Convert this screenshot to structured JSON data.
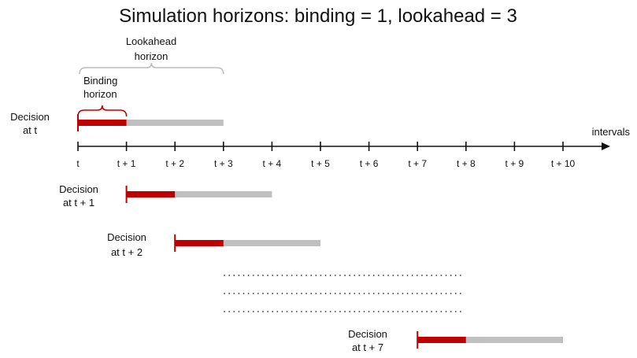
{
  "title": "Simulation horizons: binding = 1, lookahead = 3",
  "axis_label": "intervals",
  "ticks": [
    "t",
    "t + 1",
    "t + 2",
    "t + 3",
    "t + 4",
    "t + 5",
    "t + 6",
    "t + 7",
    "t + 8",
    "t + 9",
    "t + 10"
  ],
  "lookahead_label": [
    "Lookahead",
    "horizon"
  ],
  "binding_label": [
    "Binding",
    "horizon"
  ],
  "binding_intervals": 1,
  "lookahead_intervals": 3,
  "decisions": [
    {
      "label": [
        "Decision",
        "at t"
      ],
      "start": 0
    },
    {
      "label": [
        "Decision",
        "at t + 1"
      ],
      "start": 1
    },
    {
      "label": [
        "Decision",
        "at t + 2"
      ],
      "start": 2
    },
    {
      "label": [
        "Decision",
        "at t + 7"
      ],
      "start": 7
    }
  ],
  "dots_rows": 3,
  "colors": {
    "binding": "#c00000",
    "lookahead": "#c0c0c0",
    "axis": "#111111"
  }
}
